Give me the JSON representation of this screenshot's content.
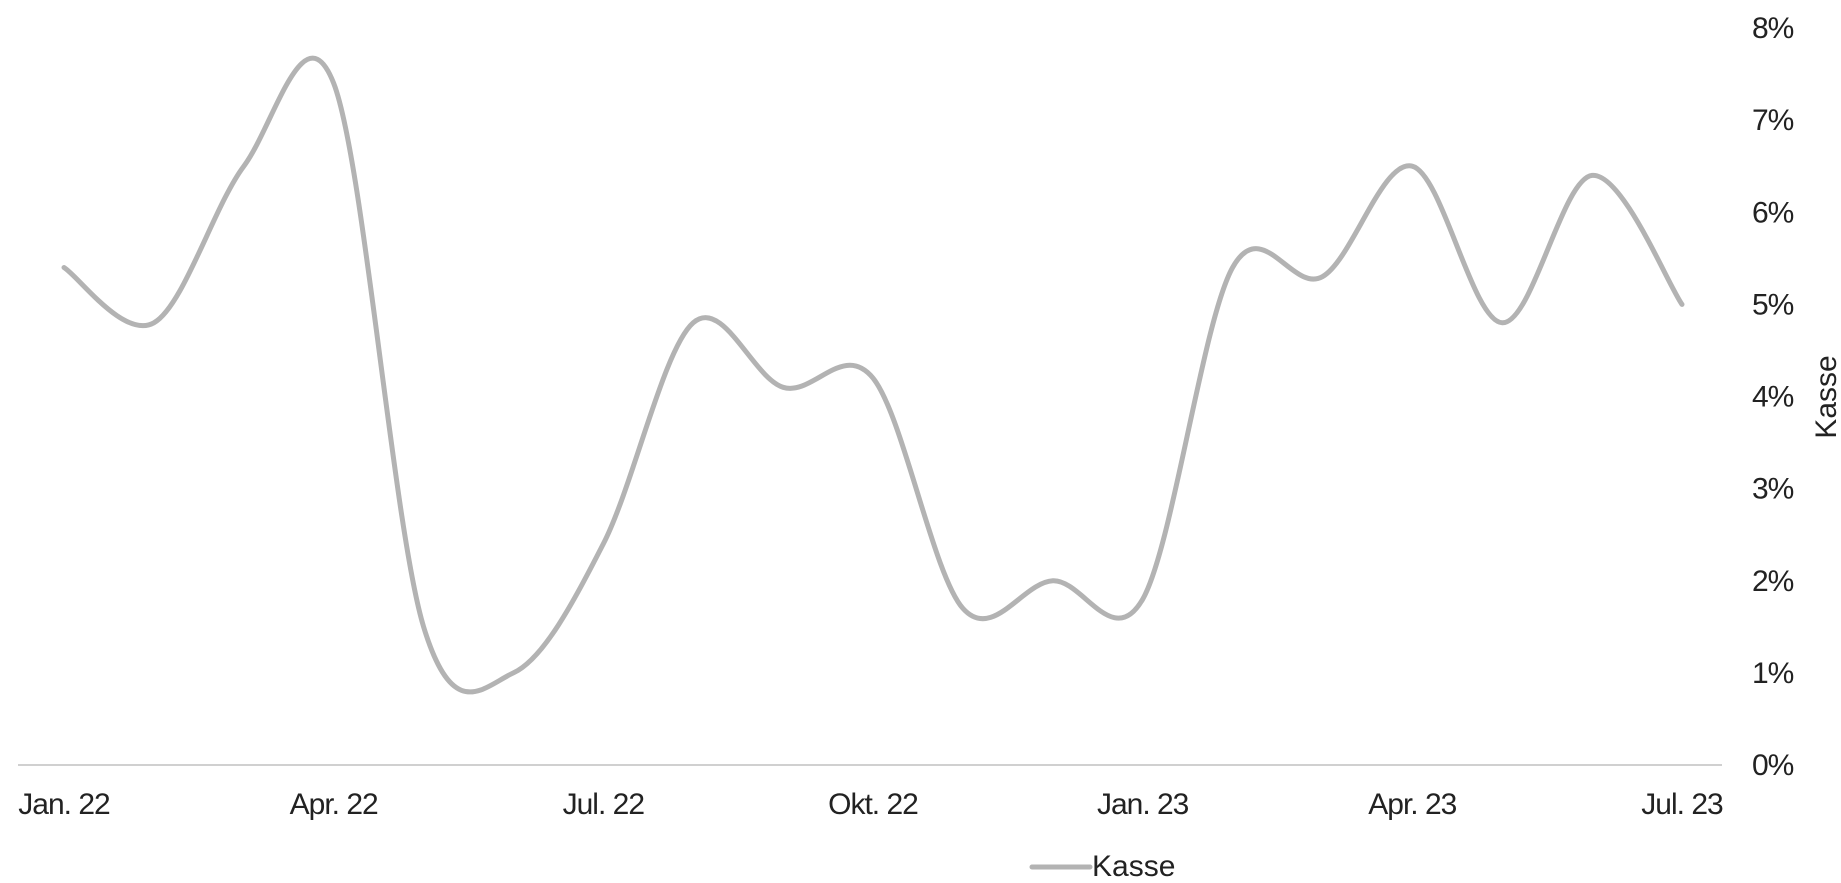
{
  "chart_data": {
    "type": "line",
    "title": "",
    "xlabel": "",
    "ylabel": "Kasse",
    "x_tick_labels": [
      "Jan. 22",
      "Apr. 22",
      "Jul. 22",
      "Okt. 22",
      "Jan. 23",
      "Apr. 23",
      "Jul. 23"
    ],
    "y_tick_labels": [
      "0%",
      "1%",
      "2%",
      "3%",
      "4%",
      "5%",
      "6%",
      "7%",
      "8%"
    ],
    "ylim": [
      0,
      8
    ],
    "y_axis_position": "right",
    "grid": false,
    "legend_position": "bottom",
    "x": [
      "Jan. 22",
      "Feb. 22",
      "Mär. 22",
      "Apr. 22",
      "Mai 22",
      "Jun. 22",
      "Jul. 22",
      "Aug. 22",
      "Sep. 22",
      "Okt. 22",
      "Nov. 22",
      "Dez. 22",
      "Jan. 23",
      "Feb. 23",
      "Mär. 23",
      "Apr. 23",
      "Mai 23",
      "Jun. 23",
      "Jul. 23"
    ],
    "series": [
      {
        "name": "Kasse",
        "color": "#b3b3b3",
        "values": [
          5.4,
          4.8,
          6.5,
          7.4,
          1.5,
          1.0,
          2.4,
          4.8,
          4.1,
          4.2,
          1.7,
          2.0,
          1.8,
          5.4,
          5.3,
          6.5,
          4.8,
          6.4,
          5.0
        ]
      }
    ],
    "colors": {
      "line": "#b3b3b3",
      "axis": "#d0d0d0",
      "text": "#222222"
    }
  }
}
